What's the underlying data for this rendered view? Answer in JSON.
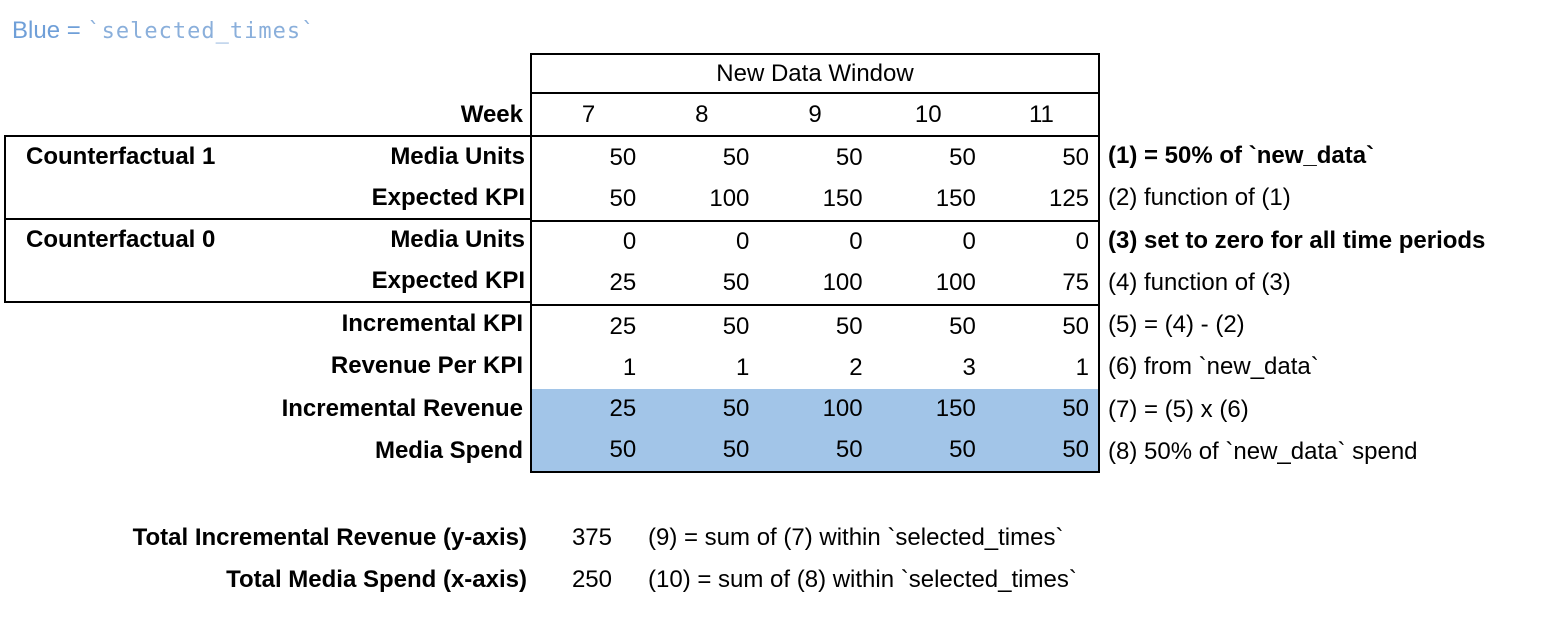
{
  "legend": {
    "prefix": "Blue =",
    "code": "`selected_times`"
  },
  "table": {
    "header": "New Data Window",
    "week_label": "Week",
    "weeks": [
      "7",
      "8",
      "9",
      "10",
      "11"
    ],
    "group1_label": "Counterfactual 1",
    "group2_label": "Counterfactual 0",
    "rows": [
      {
        "label": "Media Units",
        "values": [
          "50",
          "50",
          "50",
          "50",
          "50"
        ],
        "annotation": "(1) = 50% of `new_data`"
      },
      {
        "label": "Expected KPI",
        "values": [
          "50",
          "100",
          "150",
          "150",
          "125"
        ],
        "annotation": "(2) function of (1)"
      },
      {
        "label": "Media Units",
        "values": [
          "0",
          "0",
          "0",
          "0",
          "0"
        ],
        "annotation": "(3) set to zero for all time periods"
      },
      {
        "label": "Expected KPI",
        "values": [
          "25",
          "50",
          "100",
          "100",
          "75"
        ],
        "annotation": "(4) function of (3)"
      },
      {
        "label": "Incremental KPI",
        "values": [
          "25",
          "50",
          "50",
          "50",
          "50"
        ],
        "annotation": "(5) = (4) - (2)"
      },
      {
        "label": "Revenue Per KPI",
        "values": [
          "1",
          "1",
          "2",
          "3",
          "1"
        ],
        "annotation": "(6) from `new_data`"
      },
      {
        "label": "Incremental Revenue",
        "values": [
          "25",
          "50",
          "100",
          "150",
          "50"
        ],
        "annotation": "(7) = (5) x (6)"
      },
      {
        "label": "Media Spend",
        "values": [
          "50",
          "50",
          "50",
          "50",
          "50"
        ],
        "annotation": "(8) 50% of `new_data` spend"
      }
    ]
  },
  "totals": [
    {
      "label": "Total Incremental Revenue (y-axis)",
      "value": "375",
      "annotation": "(9) = sum of (7) within `selected_times`"
    },
    {
      "label": "Total Media Spend (x-axis)",
      "value": "250",
      "annotation": "(10) = sum of (8) within `selected_times`"
    }
  ],
  "colors": {
    "highlight_blue": "#A2C5E8",
    "legend_blue": "#6F9FD8",
    "legend_code_blue": "#8AAFDB"
  }
}
